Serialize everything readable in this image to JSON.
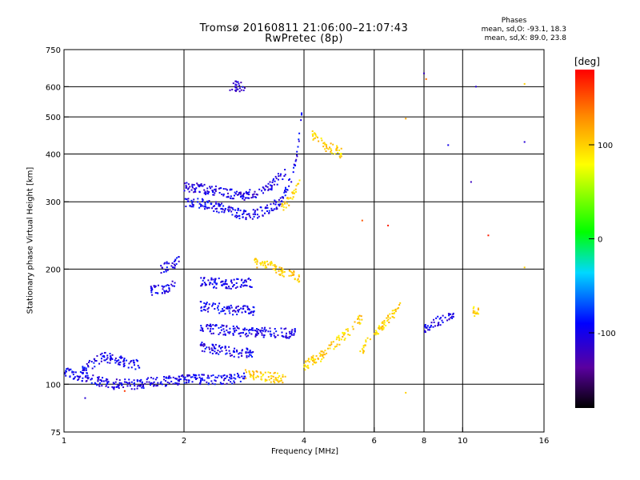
{
  "title": {
    "line1": "Tromsø 20160811 21:06:00–21:07:43",
    "line2": "RwPretec (8p)"
  },
  "stats": {
    "heading": "Phases",
    "o_mode": "mean, sd,O: -93.1, 18.3",
    "x_mode": "mean, sd,X:  89.0, 23.8"
  },
  "colorbar": {
    "unit": "[deg]",
    "ticks": [
      "100",
      "0",
      "-100"
    ],
    "tick_values": [
      100,
      0,
      -100
    ],
    "range": [
      -180,
      180
    ]
  },
  "chart_data": {
    "type": "scatter",
    "xlabel": "Frequency [MHz]",
    "ylabel": "Stationary phase Virtual Height [km]",
    "x_scale": "log",
    "y_scale": "log",
    "xlim": [
      1,
      16
    ],
    "ylim": [
      75,
      750
    ],
    "grid": true,
    "x_ticks": [
      1,
      2,
      4,
      6,
      8,
      10,
      16
    ],
    "y_ticks": [
      75,
      100,
      200,
      300,
      400,
      500,
      600,
      750
    ],
    "color_by": "phase [deg]",
    "traces": [
      {
        "x": [
          1.0,
          1.15,
          1.3,
          1.5,
          1.8,
          2.1,
          2.5,
          2.85
        ],
        "y": [
          108,
          104,
          100,
          100,
          102,
          103,
          103,
          104
        ],
        "phase": -100
      },
      {
        "x": [
          1.1,
          1.25,
          1.4,
          1.55
        ],
        "y": [
          108,
          118,
          115,
          112
        ],
        "phase": -100
      },
      {
        "x": [
          2.85,
          3.1,
          3.4,
          3.6
        ],
        "y": [
          106,
          105,
          104,
          104
        ],
        "phase": 100
      },
      {
        "x": [
          2.0,
          2.3,
          2.6,
          2.9,
          3.2,
          3.5,
          3.7,
          3.85,
          4.0
        ],
        "y": [
          300,
          295,
          285,
          275,
          285,
          300,
          340,
          400,
          560
        ],
        "phase": -100
      },
      {
        "x": [
          2.0,
          2.4,
          2.8,
          3.2,
          3.6
        ],
        "y": [
          330,
          320,
          310,
          320,
          360
        ],
        "phase": -105
      },
      {
        "x": [
          2.6,
          2.85
        ],
        "y": [
          603,
          600
        ],
        "phase": -110
      },
      {
        "x": [
          3.5,
          3.65,
          3.8,
          3.9
        ],
        "y": [
          290,
          300,
          320,
          345
        ],
        "phase": 100
      },
      {
        "x": [
          4.2,
          4.5,
          4.8,
          5.0
        ],
        "y": [
          450,
          420,
          410,
          400
        ],
        "phase": 100
      },
      {
        "x": [
          1.65,
          1.8,
          1.9
        ],
        "y": [
          175,
          178,
          182
        ],
        "phase": -100
      },
      {
        "x": [
          1.75,
          1.85,
          1.95
        ],
        "y": [
          200,
          205,
          210
        ],
        "phase": -100
      },
      {
        "x": [
          2.2,
          2.6,
          3.0
        ],
        "y": [
          185,
          183,
          185
        ],
        "phase": -100
      },
      {
        "x": [
          2.2,
          2.6,
          3.0
        ],
        "y": [
          160,
          157,
          155
        ],
        "phase": -100
      },
      {
        "x": [
          2.2,
          2.6,
          3.0,
          3.4,
          3.8
        ],
        "y": [
          140,
          138,
          137,
          136,
          136
        ],
        "phase": -100
      },
      {
        "x": [
          2.2,
          2.6,
          3.0
        ],
        "y": [
          125,
          122,
          120
        ],
        "phase": -100
      },
      {
        "x": [
          3.0,
          3.3,
          3.6,
          3.9
        ],
        "y": [
          208,
          205,
          195,
          190
        ],
        "phase": 100
      },
      {
        "x": [
          4.0,
          4.4,
          4.8,
          5.2,
          5.6
        ],
        "y": [
          112,
          118,
          128,
          138,
          150
        ],
        "phase": 100
      },
      {
        "x": [
          5.5,
          5.8,
          6.2,
          6.6,
          7.0
        ],
        "y": [
          120,
          130,
          140,
          150,
          160
        ],
        "phase": 100
      },
      {
        "x": [
          8.0,
          8.5,
          9.0,
          9.5
        ],
        "y": [
          140,
          145,
          148,
          150
        ],
        "phase": -100
      },
      {
        "x": [
          10.5,
          11.0
        ],
        "y": [
          155,
          155
        ],
        "phase": 100
      }
    ],
    "isolated_points": [
      {
        "x": 1.13,
        "y": 92,
        "phase": -110
      },
      {
        "x": 1.42,
        "y": 96,
        "phase": 160
      },
      {
        "x": 5.6,
        "y": 268,
        "phase": 150
      },
      {
        "x": 6.5,
        "y": 260,
        "phase": 170
      },
      {
        "x": 8.0,
        "y": 650,
        "phase": -120
      },
      {
        "x": 8.1,
        "y": 628,
        "phase": 140
      },
      {
        "x": 10.8,
        "y": 600,
        "phase": -110
      },
      {
        "x": 14.3,
        "y": 610,
        "phase": 100
      },
      {
        "x": 14.3,
        "y": 430,
        "phase": -110
      },
      {
        "x": 10.5,
        "y": 338,
        "phase": -120
      },
      {
        "x": 11.6,
        "y": 245,
        "phase": 170
      },
      {
        "x": 7.2,
        "y": 495,
        "phase": 120
      },
      {
        "x": 7.2,
        "y": 95,
        "phase": 100
      },
      {
        "x": 9.2,
        "y": 422,
        "phase": -100
      },
      {
        "x": 14.3,
        "y": 202,
        "phase": 100
      }
    ]
  }
}
